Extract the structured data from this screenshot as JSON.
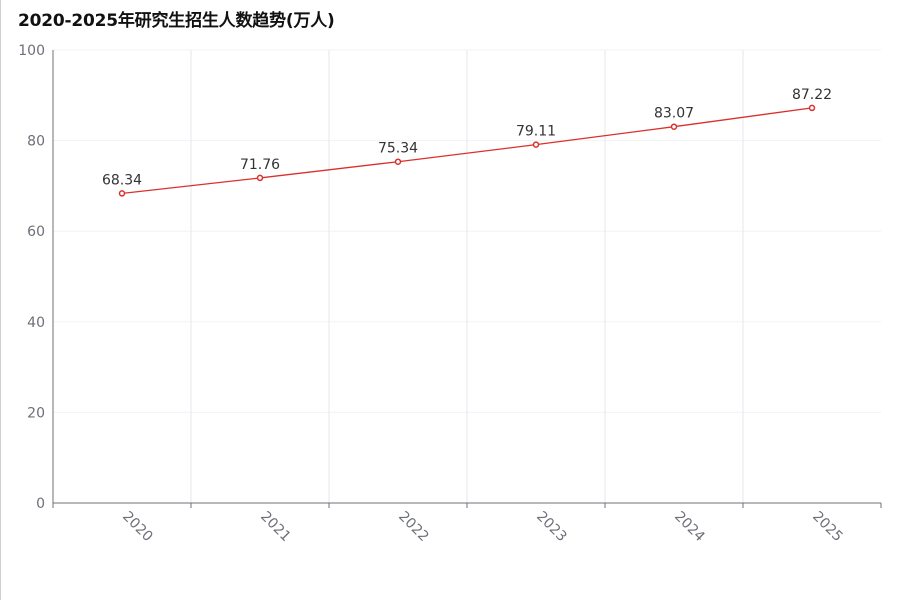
{
  "chart_data": {
    "type": "line",
    "title": "2020-2025年研究生招生人数趋势(万人)",
    "categories": [
      "2020",
      "2021",
      "2022",
      "2023",
      "2024",
      "2025"
    ],
    "series": [
      {
        "values": [
          68.34,
          71.76,
          75.34,
          79.11,
          83.07,
          87.22
        ]
      }
    ],
    "ylim": [
      0,
      100
    ],
    "yticks": [
      0,
      20,
      40,
      60,
      80,
      100
    ],
    "grid": true,
    "colors": {
      "line": "#d9302c",
      "axis": "#6e7079",
      "grid": "#e4e7ed",
      "tick_label": "#6e7079",
      "data_label": "#333333"
    }
  }
}
